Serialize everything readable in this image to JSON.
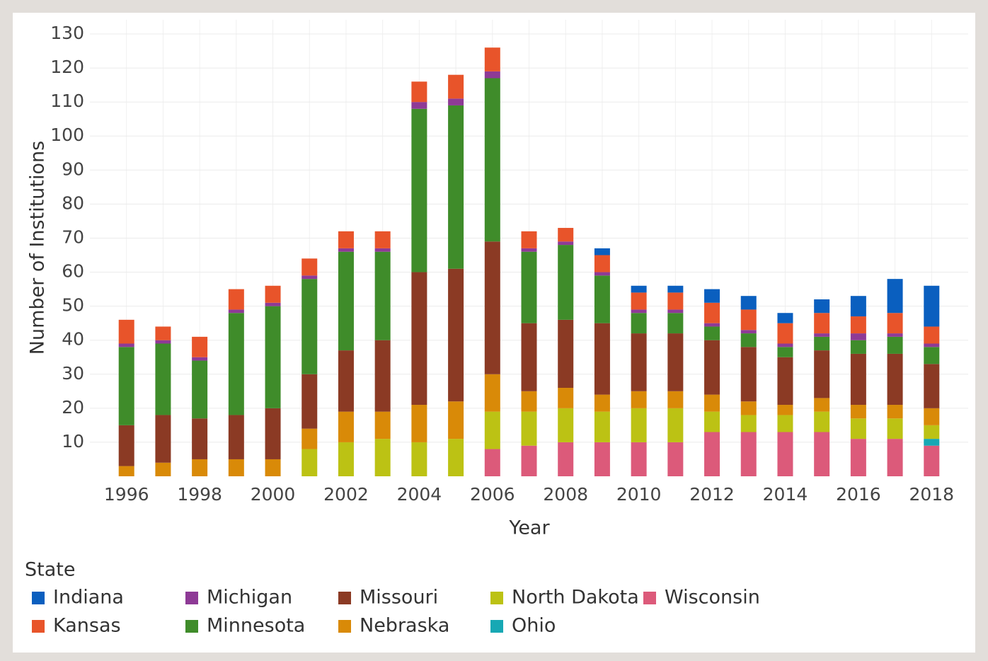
{
  "chart_data": {
    "type": "stacked-bar",
    "x_label": "Year",
    "y_label": "Number of Institutions",
    "legend_title": "State",
    "x": [
      1996,
      1997,
      1998,
      1999,
      2000,
      2001,
      2002,
      2003,
      2004,
      2005,
      2006,
      2007,
      2008,
      2009,
      2010,
      2011,
      2012,
      2013,
      2014,
      2015,
      2016,
      2017,
      2018
    ],
    "xlim": [
      1995,
      2019
    ],
    "xticks": [
      1996,
      1998,
      2000,
      2002,
      2004,
      2006,
      2008,
      2010,
      2012,
      2014,
      2016,
      2018
    ],
    "ylim": [
      0,
      130
    ],
    "yticks": [
      10,
      20,
      30,
      40,
      50,
      60,
      70,
      80,
      90,
      100,
      110,
      120,
      130
    ],
    "grid": true,
    "series": [
      {
        "name": "Indiana",
        "color": "#0a5fbf",
        "values": [
          0,
          0,
          0,
          0,
          0,
          0,
          0,
          0,
          0,
          0,
          0,
          0,
          0,
          2,
          2,
          2,
          4,
          4,
          3,
          4,
          6,
          10,
          12
        ]
      },
      {
        "name": "Kansas",
        "color": "#e8542a",
        "values": [
          7,
          4,
          6,
          6,
          5,
          5,
          5,
          5,
          6,
          7,
          7,
          5,
          4,
          5,
          5,
          5,
          6,
          6,
          6,
          6,
          5,
          6,
          5
        ]
      },
      {
        "name": "Michigan",
        "color": "#8e3a96",
        "values": [
          1,
          1,
          1,
          1,
          1,
          1,
          1,
          1,
          2,
          2,
          2,
          1,
          1,
          1,
          1,
          1,
          1,
          1,
          1,
          1,
          2,
          1,
          1
        ]
      },
      {
        "name": "Minnesota",
        "color": "#3f8c2a",
        "values": [
          23,
          21,
          17,
          30,
          30,
          28,
          29,
          26,
          48,
          48,
          48,
          21,
          22,
          14,
          6,
          6,
          4,
          4,
          3,
          4,
          4,
          5,
          5
        ]
      },
      {
        "name": "Missouri",
        "color": "#8b3a24",
        "values": [
          12,
          14,
          12,
          13,
          15,
          16,
          18,
          21,
          39,
          39,
          39,
          20,
          20,
          21,
          17,
          17,
          16,
          16,
          14,
          14,
          15,
          15,
          13
        ]
      },
      {
        "name": "Nebraska",
        "color": "#d98a08",
        "values": [
          3,
          4,
          5,
          5,
          5,
          6,
          9,
          8,
          11,
          11,
          11,
          6,
          6,
          5,
          5,
          5,
          5,
          4,
          3,
          4,
          4,
          4,
          5
        ]
      },
      {
        "name": "North Dakota",
        "color": "#bcc214",
        "values": [
          0,
          0,
          0,
          0,
          0,
          8,
          10,
          11,
          10,
          11,
          11,
          10,
          10,
          9,
          10,
          10,
          6,
          5,
          5,
          6,
          6,
          6,
          4
        ]
      },
      {
        "name": "Ohio",
        "color": "#17a8b4",
        "values": [
          0,
          0,
          0,
          0,
          0,
          0,
          0,
          0,
          0,
          0,
          0,
          0,
          0,
          0,
          0,
          0,
          0,
          0,
          0,
          0,
          0,
          0,
          2
        ]
      },
      {
        "name": "Wisconsin",
        "color": "#dc5a7a",
        "values": [
          0,
          0,
          0,
          0,
          0,
          0,
          0,
          0,
          0,
          0,
          8,
          9,
          10,
          10,
          10,
          10,
          13,
          13,
          13,
          13,
          11,
          11,
          9
        ]
      }
    ]
  }
}
